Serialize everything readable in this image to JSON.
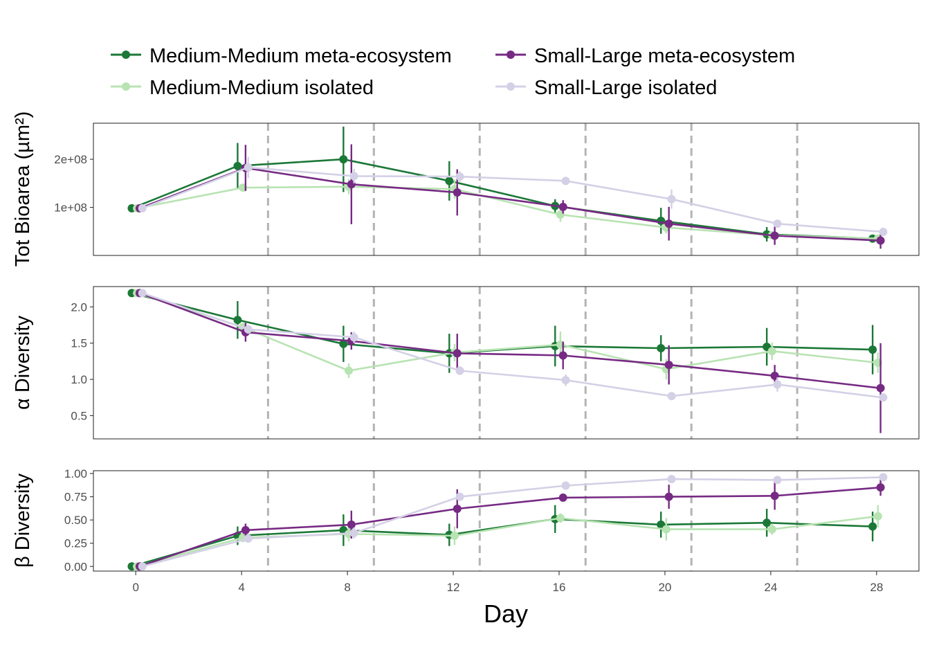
{
  "chart_data": {
    "type": "line",
    "xlabel": "Day",
    "x_ticks": [
      "0",
      "4",
      "8",
      "12",
      "16",
      "20",
      "24",
      "28"
    ],
    "xlim": [
      -1.6,
      29.6
    ],
    "disturbance_days": [
      5,
      9,
      13,
      17,
      21,
      25
    ],
    "legend": {
      "position": "top",
      "entries": [
        {
          "label": "Medium-Medium meta-ecosystem",
          "color": "#1b7837"
        },
        {
          "label": "Small-Large meta-ecosystem",
          "color": "#762a83"
        },
        {
          "label": "Medium-Medium isolated",
          "color": "#b8e3b2"
        },
        {
          "label": "Small-Large isolated",
          "color": "#d4d0e6"
        }
      ]
    },
    "series_styles": [
      {
        "name": "Medium-Medium meta-ecosystem",
        "color": "#1b7837",
        "offset": -0.15
      },
      {
        "name": "Medium-Medium isolated",
        "color": "#b8e3b2",
        "offset": 0.05
      },
      {
        "name": "Small-Large meta-ecosystem",
        "color": "#762a83",
        "offset": 0.15
      },
      {
        "name": "Small-Large isolated",
        "color": "#d4d0e6",
        "offset": 0.25
      }
    ],
    "grid": false,
    "panels": [
      {
        "ylabel": "Tot Bioarea (µm²)",
        "ylim": [
          0,
          275000000
        ],
        "y_ticks": [
          100000000,
          200000000
        ],
        "y_tick_labels": [
          "1e+08",
          "2e+08"
        ],
        "x": [
          0,
          4,
          8,
          12,
          16,
          20,
          24,
          28
        ],
        "series": [
          {
            "values": [
              98000000,
              186000000,
              200000000,
              155000000,
              103000000,
              72000000,
              44000000,
              35000000
            ],
            "errors": [
              3000000,
              48000000,
              68000000,
              41000000,
              14000000,
              27000000,
              15000000,
              6000000
            ]
          },
          {
            "values": [
              98000000,
              141000000,
              143000000,
              138000000,
              85000000,
              58000000,
              42000000,
              35000000
            ],
            "errors": [
              3000000,
              8000000,
              16000000,
              20000000,
              15000000,
              12000000,
              6000000,
              5000000
            ]
          },
          {
            "values": [
              98000000,
              182000000,
              148000000,
              131000000,
              101000000,
              66000000,
              41000000,
              31000000
            ],
            "errors": [
              3000000,
              48000000,
              83000000,
              48000000,
              14000000,
              35000000,
              19000000,
              17000000
            ]
          },
          {
            "values": [
              98000000,
              183000000,
              165000000,
              164000000,
              155000000,
              117000000,
              66000000,
              49000000
            ],
            "errors": [
              3000000,
              22000000,
              15000000,
              11000000,
              5000000,
              20000000,
              6000000,
              5000000
            ]
          }
        ]
      },
      {
        "ylabel": "α Diversity",
        "ylim": [
          0.18,
          2.28
        ],
        "y_ticks": [
          0.5,
          1.0,
          1.5,
          2.0
        ],
        "y_tick_labels": [
          "0.5",
          "1.0",
          "1.5",
          "2.0"
        ],
        "x": [
          0,
          4,
          8,
          12,
          16,
          20,
          24,
          28
        ],
        "series": [
          {
            "values": [
              2.19,
              1.82,
              1.49,
              1.36,
              1.46,
              1.43,
              1.45,
              1.41
            ],
            "errors": [
              0.02,
              0.26,
              0.25,
              0.27,
              0.28,
              0.18,
              0.26,
              0.34
            ]
          },
          {
            "values": [
              2.19,
              1.72,
              1.12,
              1.37,
              1.48,
              1.14,
              1.39,
              1.23
            ],
            "errors": [
              0.02,
              0.06,
              0.1,
              0.12,
              0.18,
              0.14,
              0.12,
              0.14
            ]
          },
          {
            "values": [
              2.19,
              1.65,
              1.53,
              1.36,
              1.33,
              1.2,
              1.05,
              0.88
            ],
            "errors": [
              0.02,
              0.13,
              0.12,
              0.27,
              0.19,
              0.27,
              0.15,
              0.62
            ]
          },
          {
            "values": [
              2.19,
              1.69,
              1.58,
              1.12,
              0.99,
              0.77,
              0.93,
              0.75
            ],
            "errors": [
              0.02,
              0.06,
              0.08,
              0.06,
              0.08,
              0.05,
              0.1,
              0.05
            ]
          }
        ]
      },
      {
        "ylabel": "β Diversity",
        "ylim": [
          -0.05,
          1.03
        ],
        "y_ticks": [
          0.0,
          0.25,
          0.5,
          0.75,
          1.0
        ],
        "y_tick_labels": [
          "0.00",
          "0.25",
          "0.50",
          "0.75",
          "1.00"
        ],
        "x": [
          0,
          4,
          8,
          12,
          16,
          20,
          24,
          28
        ],
        "series": [
          {
            "values": [
              0.0,
              0.33,
              0.39,
              0.34,
              0.51,
              0.45,
              0.47,
              0.43
            ],
            "errors": [
              0.01,
              0.1,
              0.17,
              0.12,
              0.15,
              0.14,
              0.15,
              0.16
            ]
          },
          {
            "values": [
              0.0,
              0.31,
              0.35,
              0.33,
              0.52,
              0.4,
              0.4,
              0.54
            ],
            "errors": [
              0.01,
              0.05,
              0.08,
              0.1,
              0.05,
              0.12,
              0.06,
              0.12
            ]
          },
          {
            "values": [
              0.0,
              0.39,
              0.45,
              0.62,
              0.74,
              0.75,
              0.76,
              0.85
            ],
            "errors": [
              0.01,
              0.07,
              0.15,
              0.21,
              0.04,
              0.13,
              0.15,
              0.09
            ]
          },
          {
            "values": [
              0.0,
              0.3,
              0.36,
              0.75,
              0.87,
              0.94,
              0.93,
              0.96
            ],
            "errors": [
              0.01,
              0.03,
              0.06,
              0.03,
              0.02,
              0.02,
              0.03,
              0.02
            ]
          }
        ]
      }
    ]
  }
}
